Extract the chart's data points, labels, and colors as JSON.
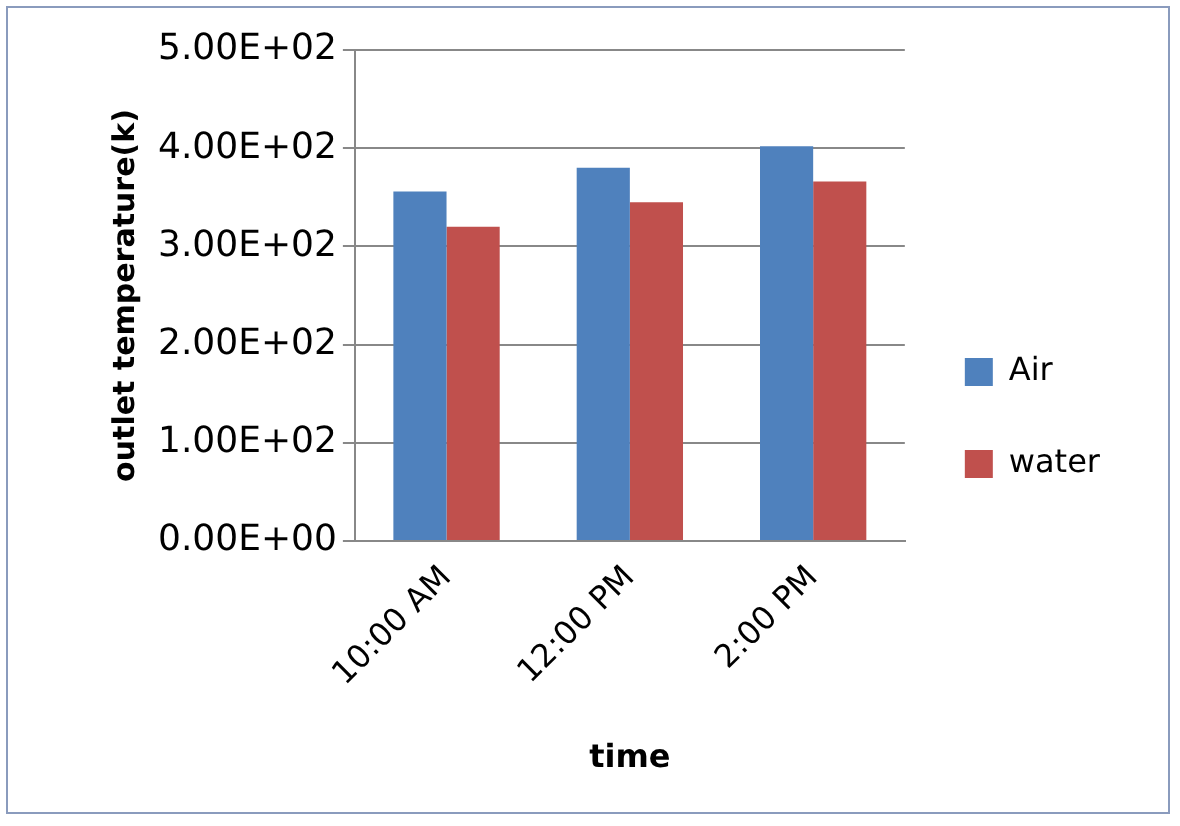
{
  "chart_data": {
    "type": "bar",
    "xlabel": "time",
    "ylabel": "outlet temperature(k)",
    "categories": [
      "10:00 AM",
      "12:00 PM",
      "2:00 PM"
    ],
    "series": [
      {
        "name": "Air",
        "color": "#4f81bd",
        "values": [
          356,
          380,
          402
        ]
      },
      {
        "name": "water",
        "color": "#c0504d",
        "values": [
          320,
          345,
          366
        ]
      }
    ],
    "ylim": [
      0,
      500
    ],
    "yticks": [
      {
        "value": 0,
        "label": "0.00E+00"
      },
      {
        "value": 100,
        "label": "1.00E+02"
      },
      {
        "value": 200,
        "label": "2.00E+02"
      },
      {
        "value": 300,
        "label": "3.00E+02"
      },
      {
        "value": 400,
        "label": "4.00E+02"
      },
      {
        "value": 500,
        "label": "5.00E+02"
      }
    ],
    "grid": "y",
    "legend": "right"
  }
}
